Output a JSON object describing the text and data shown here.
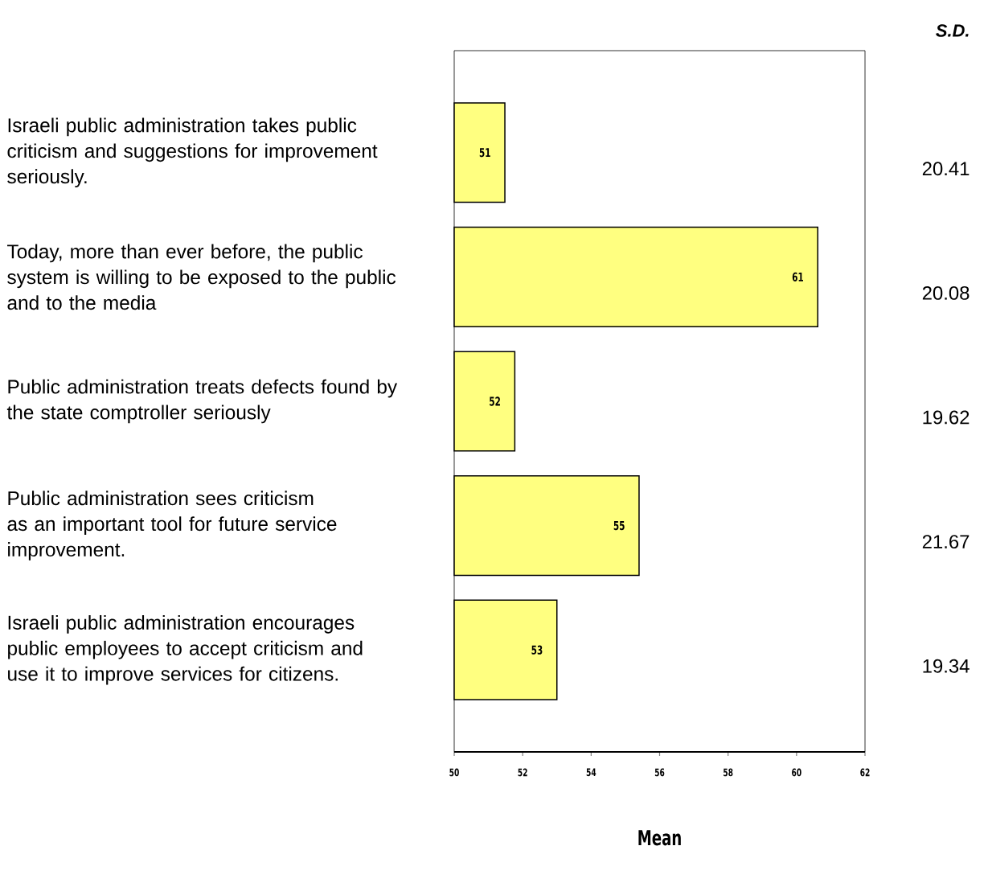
{
  "chart_data": {
    "type": "bar",
    "orientation": "horizontal",
    "xlabel": "Mean",
    "categories": [
      "Israeli public administration takes public criticism and suggestions for improvement seriously.",
      "Today, more than ever before, the public system is willing to be exposed to the public and to the media",
      "Public administration treats defects found by the state comptroller seriously",
      "Public administration sees criticism as an important tool for future service improvement.",
      "Israeli public administration encourages public employees to accept criticism and use it to improve services for citizens."
    ],
    "values": [
      51.48,
      60.62,
      51.77,
      55.4,
      53.0
    ],
    "value_labels": [
      "51",
      "61",
      "52",
      "55",
      "53"
    ],
    "color": "#ffff80",
    "xlim": [
      50,
      62
    ],
    "xticks": [
      50,
      52,
      54,
      56,
      58,
      60,
      62
    ],
    "grid": false,
    "annotations": [
      "S.D.",
      "20.41",
      "20.08",
      "19.62",
      "21.67",
      "19.34"
    ]
  }
}
